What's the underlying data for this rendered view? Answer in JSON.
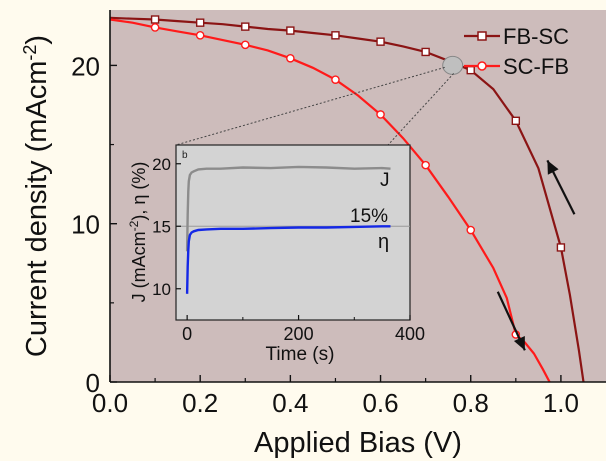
{
  "chart_data": [
    {
      "type": "line",
      "xlabel": "Applied Bias (V)",
      "ylabel": "Current density (mAcm",
      "ylabel_sup": "-2",
      "ylabel_close": ")",
      "xlim": [
        0.0,
        1.1
      ],
      "ylim": [
        0,
        23.5
      ],
      "x_ticks": [
        "0.0",
        "0.2",
        "0.4",
        "0.6",
        "0.8",
        "1.0"
      ],
      "x_tick_values": [
        0.0,
        0.2,
        0.4,
        0.6,
        0.8,
        1.0
      ],
      "y_ticks": [
        "0",
        "10",
        "20"
      ],
      "y_tick_values": [
        0,
        10,
        20
      ],
      "legend_position": "top-right",
      "background": "#cdbcbb",
      "series": [
        {
          "name": "FB-SC",
          "color": "#8b1414",
          "marker": "square",
          "x": [
            0.0,
            0.05,
            0.1,
            0.15,
            0.2,
            0.25,
            0.3,
            0.35,
            0.4,
            0.45,
            0.5,
            0.55,
            0.6,
            0.65,
            0.7,
            0.75,
            0.8,
            0.85,
            0.9,
            0.95,
            1.0,
            1.02,
            1.04,
            1.05
          ],
          "y": [
            23.0,
            22.95,
            22.9,
            22.8,
            22.7,
            22.6,
            22.45,
            22.3,
            22.2,
            22.05,
            21.9,
            21.7,
            21.5,
            21.2,
            20.85,
            20.3,
            19.7,
            18.5,
            16.5,
            13.5,
            8.5,
            5.5,
            2.0,
            0.0
          ],
          "marker_indices": [
            2,
            4,
            6,
            8,
            10,
            12,
            14,
            16,
            18,
            20
          ]
        },
        {
          "name": "SC-FB",
          "color": "#ff1a1a",
          "marker": "circle",
          "x": [
            0.0,
            0.05,
            0.1,
            0.15,
            0.2,
            0.25,
            0.3,
            0.35,
            0.4,
            0.45,
            0.5,
            0.55,
            0.6,
            0.65,
            0.7,
            0.75,
            0.8,
            0.85,
            0.88,
            0.9,
            0.92,
            0.94,
            0.96,
            0.975
          ],
          "y": [
            22.9,
            22.7,
            22.4,
            22.15,
            21.9,
            21.6,
            21.3,
            20.95,
            20.45,
            19.85,
            19.1,
            18.1,
            16.9,
            15.4,
            13.7,
            11.7,
            9.6,
            7.2,
            5.3,
            3.0,
            2.5,
            1.8,
            0.8,
            0.0
          ],
          "marker_indices": [
            2,
            4,
            6,
            8,
            10,
            12,
            14,
            16,
            19
          ]
        }
      ],
      "arrows": [
        {
          "from": [
            1.03,
            10.6
          ],
          "to": [
            0.97,
            14.0
          ],
          "color": "#111"
        },
        {
          "from": [
            0.86,
            5.7
          ],
          "to": [
            0.92,
            2.0
          ],
          "color": "#111"
        }
      ],
      "highlight_point": {
        "x": 0.76,
        "y": 20.0,
        "color": "#bfbfbf"
      }
    },
    {
      "type": "line",
      "panel_label": "b",
      "xlabel": "Time (s)",
      "ylabel": "J (mAcm",
      "ylabel_sup": "-2",
      "ylabel_tail": "), η (%)",
      "xlim": [
        -20,
        400
      ],
      "ylim": [
        7.5,
        21.5
      ],
      "x_ticks": [
        "0",
        "200",
        "400"
      ],
      "x_tick_values": [
        0,
        200,
        400
      ],
      "y_ticks": [
        "10",
        "15",
        "20"
      ],
      "y_tick_values": [
        10,
        15,
        20
      ],
      "background": "#d3d3d3",
      "reference_line": {
        "y": 15,
        "label": "15%",
        "color": "#9a9a9a"
      },
      "series": [
        {
          "name": "J",
          "color": "#8c8c8c",
          "x": [
            0,
            1,
            2,
            3,
            5,
            8,
            12,
            20,
            35,
            60,
            100,
            150,
            200,
            250,
            300,
            350,
            365
          ],
          "y": [
            13.0,
            16.0,
            17.8,
            18.6,
            19.1,
            19.3,
            19.4,
            19.55,
            19.6,
            19.6,
            19.7,
            19.65,
            19.75,
            19.7,
            19.6,
            19.65,
            19.6
          ]
        },
        {
          "name": "η",
          "color": "#1428e6",
          "x": [
            0,
            1,
            2,
            3,
            5,
            8,
            12,
            20,
            35,
            60,
            100,
            150,
            200,
            250,
            300,
            350,
            365
          ],
          "y": [
            9.6,
            11.8,
            13.1,
            13.8,
            14.3,
            14.5,
            14.6,
            14.7,
            14.75,
            14.8,
            14.8,
            14.85,
            14.9,
            14.9,
            14.95,
            15.0,
            15.0
          ]
        }
      ]
    }
  ]
}
